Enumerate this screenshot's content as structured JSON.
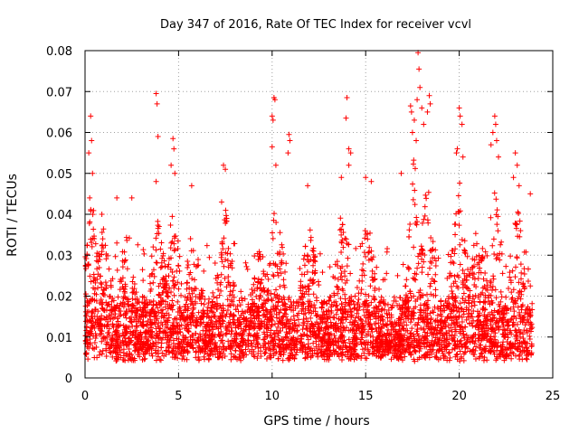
{
  "chart_data": {
    "type": "scatter",
    "title": "Day 347 of 2016, Rate Of TEC Index for receiver vcvl",
    "xlabel": "GPS time / hours",
    "ylabel": "ROTI / TECUs",
    "xlim": [
      0,
      25
    ],
    "ylim": [
      0,
      0.08
    ],
    "xticks": [
      0,
      5,
      10,
      15,
      20,
      25
    ],
    "xtick_labels": [
      "0",
      "5",
      "10",
      "15",
      "20",
      "25"
    ],
    "yticks": [
      0,
      0.01,
      0.02,
      0.03,
      0.04,
      0.05,
      0.06,
      0.07,
      0.08
    ],
    "ytick_labels": [
      "0",
      "0.01",
      "0.02",
      "0.03",
      "0.04",
      "0.05",
      "0.06",
      "0.07",
      "0.08"
    ],
    "grid": true,
    "marker": "+",
    "color": "#ff0000",
    "x_range_data": [
      0,
      23.9
    ],
    "baseline_range": [
      0.004,
      0.02
    ],
    "highlights": [
      {
        "x": 0.3,
        "y": 0.064
      },
      {
        "x": 0.35,
        "y": 0.058
      },
      {
        "x": 0.2,
        "y": 0.055
      },
      {
        "x": 0.4,
        "y": 0.05
      },
      {
        "x": 0.25,
        "y": 0.044
      },
      {
        "x": 0.9,
        "y": 0.04
      },
      {
        "x": 1.7,
        "y": 0.044
      },
      {
        "x": 2.5,
        "y": 0.044
      },
      {
        "x": 3.8,
        "y": 0.0695
      },
      {
        "x": 3.85,
        "y": 0.067
      },
      {
        "x": 3.9,
        "y": 0.059
      },
      {
        "x": 3.8,
        "y": 0.048
      },
      {
        "x": 4.7,
        "y": 0.0585
      },
      {
        "x": 4.75,
        "y": 0.056
      },
      {
        "x": 4.6,
        "y": 0.052
      },
      {
        "x": 4.8,
        "y": 0.05
      },
      {
        "x": 5.7,
        "y": 0.047
      },
      {
        "x": 7.4,
        "y": 0.052
      },
      {
        "x": 7.5,
        "y": 0.051
      },
      {
        "x": 7.3,
        "y": 0.043
      },
      {
        "x": 10.1,
        "y": 0.0685
      },
      {
        "x": 10.15,
        "y": 0.068
      },
      {
        "x": 10.0,
        "y": 0.064
      },
      {
        "x": 10.05,
        "y": 0.063
      },
      {
        "x": 10.0,
        "y": 0.0565
      },
      {
        "x": 10.2,
        "y": 0.052
      },
      {
        "x": 10.9,
        "y": 0.0595
      },
      {
        "x": 10.95,
        "y": 0.058
      },
      {
        "x": 10.85,
        "y": 0.055
      },
      {
        "x": 11.9,
        "y": 0.047
      },
      {
        "x": 13.7,
        "y": 0.049
      },
      {
        "x": 14.0,
        "y": 0.0685
      },
      {
        "x": 13.95,
        "y": 0.0635
      },
      {
        "x": 14.1,
        "y": 0.056
      },
      {
        "x": 14.2,
        "y": 0.055
      },
      {
        "x": 14.1,
        "y": 0.052
      },
      {
        "x": 15.0,
        "y": 0.049
      },
      {
        "x": 15.3,
        "y": 0.048
      },
      {
        "x": 16.9,
        "y": 0.05
      },
      {
        "x": 17.4,
        "y": 0.0665
      },
      {
        "x": 17.45,
        "y": 0.065
      },
      {
        "x": 17.6,
        "y": 0.063
      },
      {
        "x": 17.8,
        "y": 0.0795
      },
      {
        "x": 17.85,
        "y": 0.0755
      },
      {
        "x": 17.9,
        "y": 0.071
      },
      {
        "x": 17.75,
        "y": 0.068
      },
      {
        "x": 18.0,
        "y": 0.066
      },
      {
        "x": 18.4,
        "y": 0.069
      },
      {
        "x": 18.45,
        "y": 0.067
      },
      {
        "x": 18.3,
        "y": 0.065
      },
      {
        "x": 18.1,
        "y": 0.062
      },
      {
        "x": 17.5,
        "y": 0.06
      },
      {
        "x": 17.7,
        "y": 0.058
      },
      {
        "x": 20.0,
        "y": 0.066
      },
      {
        "x": 20.05,
        "y": 0.064
      },
      {
        "x": 20.15,
        "y": 0.062
      },
      {
        "x": 19.9,
        "y": 0.056
      },
      {
        "x": 19.85,
        "y": 0.055
      },
      {
        "x": 20.2,
        "y": 0.054
      },
      {
        "x": 21.9,
        "y": 0.064
      },
      {
        "x": 21.95,
        "y": 0.062
      },
      {
        "x": 21.8,
        "y": 0.06
      },
      {
        "x": 22.0,
        "y": 0.058
      },
      {
        "x": 21.7,
        "y": 0.057
      },
      {
        "x": 22.1,
        "y": 0.054
      },
      {
        "x": 23.0,
        "y": 0.055
      },
      {
        "x": 23.1,
        "y": 0.052
      },
      {
        "x": 22.9,
        "y": 0.049
      },
      {
        "x": 23.8,
        "y": 0.045
      },
      {
        "x": 23.2,
        "y": 0.047
      }
    ],
    "activity_windows": [
      {
        "center": 0.4,
        "peak": 0.045
      },
      {
        "center": 1.0,
        "peak": 0.04
      },
      {
        "center": 2.3,
        "peak": 0.038
      },
      {
        "center": 3.9,
        "peak": 0.042
      },
      {
        "center": 4.7,
        "peak": 0.045
      },
      {
        "center": 5.8,
        "peak": 0.04
      },
      {
        "center": 7.5,
        "peak": 0.042
      },
      {
        "center": 9.3,
        "peak": 0.032
      },
      {
        "center": 10.2,
        "peak": 0.045
      },
      {
        "center": 12.0,
        "peak": 0.04
      },
      {
        "center": 13.8,
        "peak": 0.045
      },
      {
        "center": 15.0,
        "peak": 0.045
      },
      {
        "center": 17.6,
        "peak": 0.055
      },
      {
        "center": 18.3,
        "peak": 0.05
      },
      {
        "center": 20.0,
        "peak": 0.05
      },
      {
        "center": 21.0,
        "peak": 0.04
      },
      {
        "center": 21.9,
        "peak": 0.05
      },
      {
        "center": 23.1,
        "peak": 0.045
      }
    ]
  }
}
